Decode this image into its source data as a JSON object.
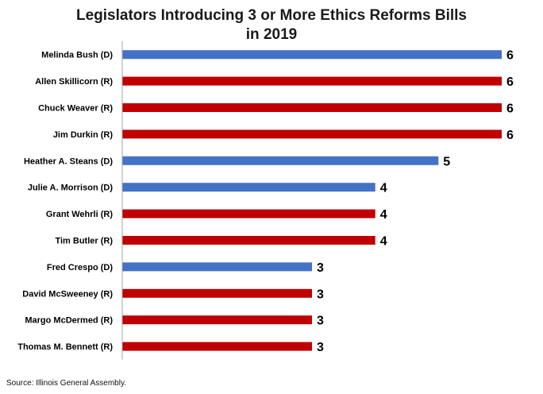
{
  "title_line1": "Legislators Introducing 3 or More Ethics Reforms Bills",
  "title_line2": "in 2019",
  "source": "Source: Illinois General Assembly.",
  "colors": {
    "D": "#4472c4",
    "R": "#c00000",
    "axis": "#a6a6a6",
    "label": "#000000"
  },
  "chart_data": {
    "type": "bar",
    "orientation": "horizontal",
    "title": "Legislators Introducing 3 or More Ethics Reforms Bills in 2019",
    "categories": [
      "Melinda Bush (D)",
      "Allen Skillicorn (R)",
      "Chuck Weaver (R)",
      "Jim Durkin (R)",
      "Heather A. Steans (D)",
      "Julie A. Morrison (D)",
      "Grant Wehrli (R)",
      "Tim Butler (R)",
      "Fred Crespo (D)",
      "David McSweeney (R)",
      "Margo McDermed (R)",
      "Thomas M. Bennett (R)"
    ],
    "values": [
      6,
      6,
      6,
      6,
      5,
      4,
      4,
      4,
      3,
      3,
      3,
      3
    ],
    "party": [
      "D",
      "R",
      "R",
      "R",
      "D",
      "D",
      "R",
      "R",
      "D",
      "R",
      "R",
      "R"
    ],
    "data_labels": true,
    "xlim": [
      0,
      6
    ],
    "grid": false,
    "legend": false
  }
}
